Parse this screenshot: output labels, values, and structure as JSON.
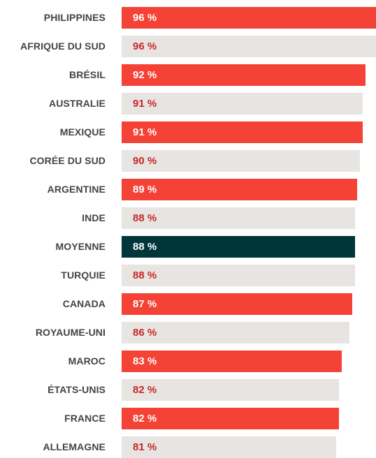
{
  "chart_data": {
    "type": "bar",
    "orientation": "horizontal",
    "title": "",
    "xlabel": "",
    "ylabel": "",
    "value_suffix": " %",
    "categories": [
      "PHILIPPINES",
      "AFRIQUE DU SUD",
      "BRÉSIL",
      "AUSTRALIE",
      "MEXIQUE",
      "CORÉE DU SUD",
      "ARGENTINE",
      "INDE",
      "MOYENNE",
      "TURQUIE",
      "CANADA",
      "ROYAUME-UNI",
      "MAROC",
      "ÉTATS-UNIS",
      "FRANCE",
      "ALLEMAGNE"
    ],
    "values": [
      96,
      96,
      92,
      91,
      91,
      90,
      89,
      88,
      88,
      88,
      87,
      86,
      83,
      82,
      82,
      81
    ],
    "highlight_category": "MOYENNE",
    "colors": {
      "primary": "#f44336",
      "alternate": "#e8e4e1",
      "highlight": "#00363a",
      "label_on_primary": "#ffffff",
      "label_on_alternate": "#c62828",
      "label_on_highlight": "#ffffff",
      "category_text": "#444444"
    }
  }
}
